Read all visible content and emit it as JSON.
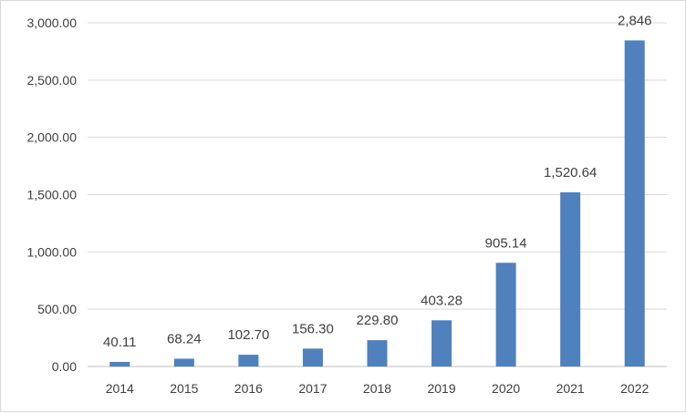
{
  "chart_data": {
    "type": "bar",
    "categories": [
      "2014",
      "2015",
      "2016",
      "2017",
      "2018",
      "2019",
      "2020",
      "2021",
      "2022"
    ],
    "values": [
      40.11,
      68.24,
      102.7,
      156.3,
      229.8,
      403.28,
      905.14,
      1520.64,
      2846
    ],
    "data_labels": [
      "40.11",
      "68.24",
      "102.70",
      "156.30",
      "229.80",
      "403.28",
      "905.14",
      "1,520.64",
      "2,846"
    ],
    "y_ticks": [
      0,
      500,
      1000,
      1500,
      2000,
      2500,
      3000
    ],
    "y_tick_labels": [
      "0.00",
      "500.00",
      "1,000.00",
      "1,500.00",
      "2,000.00",
      "2,500.00",
      "3,000.00"
    ],
    "ylim": [
      0,
      3000
    ],
    "grid": true,
    "legend": "none",
    "colors": {
      "bar": "#4f81bd",
      "grid": "#d9d9d9",
      "axis": "#bfbfbf",
      "text": "#404040"
    }
  }
}
